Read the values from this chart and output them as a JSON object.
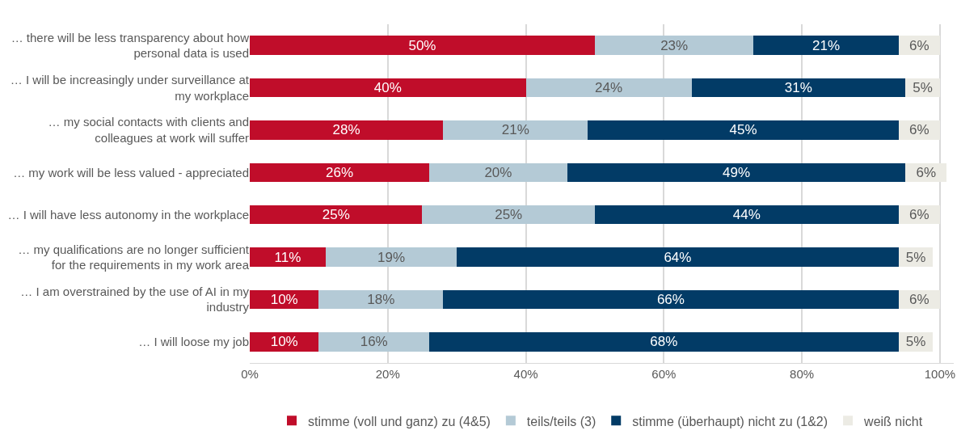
{
  "chart_data": {
    "type": "bar",
    "orientation": "horizontal",
    "stacked": true,
    "categories": [
      "… there will be less transparency about how personal data is used",
      "… I will be increasingly under surveillance at my workplace",
      "… my social contacts with clients and colleagues at work will suffer",
      "… my work will be less valued - appreciated",
      "… I will have less autonomy in the workplace",
      "… my qualifications are no longer sufficient for the requirements in my work area",
      "… I am overstrained by the use of AI in my industry",
      "… I will loose my job"
    ],
    "series": [
      {
        "name": "stimme (voll und ganz) zu (4&5)",
        "color": "#c00d2a",
        "values": [
          50,
          40,
          28,
          26,
          25,
          11,
          10,
          10
        ],
        "value_labels": [
          "50%",
          "40%",
          "28%",
          "26%",
          "25%",
          "11%",
          "10%",
          "10%"
        ]
      },
      {
        "name": "teils/teils (3)",
        "color": "#b4cad6",
        "values": [
          23,
          24,
          21,
          20,
          25,
          19,
          18,
          16
        ],
        "value_labels": [
          "23%",
          "24%",
          "21%",
          "20%",
          "25%",
          "19%",
          "18%",
          "16%"
        ]
      },
      {
        "name": "stimme (überhaupt) nicht zu (1&2)",
        "color": "#023b66",
        "values": [
          21,
          31,
          45,
          49,
          44,
          64,
          66,
          68
        ],
        "value_labels": [
          "21%",
          "31%",
          "45%",
          "49%",
          "44%",
          "64%",
          "66%",
          "68%"
        ]
      },
      {
        "name": "weiß nicht",
        "color": "#ecebe4",
        "values": [
          6,
          5,
          6,
          6,
          6,
          5,
          6,
          5
        ],
        "value_labels": [
          "6%",
          "5%",
          "6%",
          "6%",
          "6%",
          "5%",
          "6%",
          "5%"
        ]
      }
    ],
    "xlim": [
      0,
      102
    ],
    "xticks": [
      {
        "value": 0,
        "label": "0%"
      },
      {
        "value": 20,
        "label": "20%"
      },
      {
        "value": 40,
        "label": "40%"
      },
      {
        "value": 60,
        "label": "60%"
      },
      {
        "value": 80,
        "label": "80%"
      },
      {
        "value": 100,
        "label": "100%"
      }
    ],
    "grid": "x",
    "legend": "bottom"
  }
}
